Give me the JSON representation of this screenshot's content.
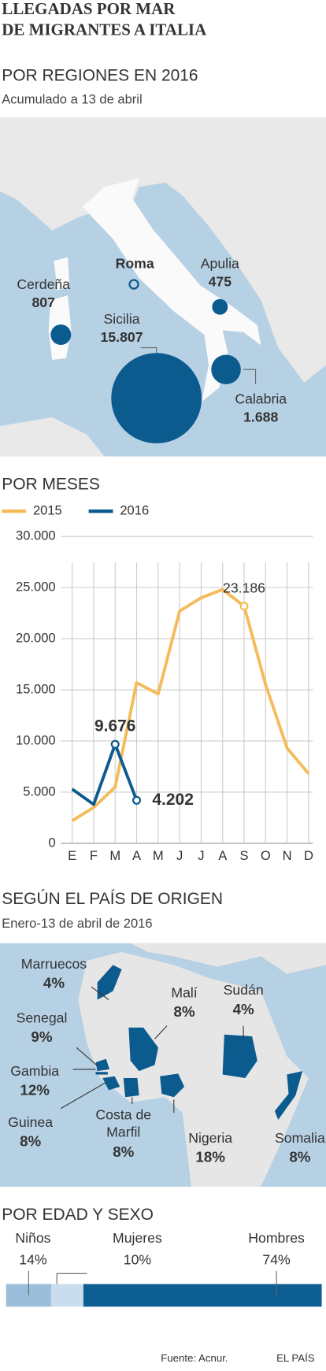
{
  "title": [
    "LLEGADAS POR MAR",
    "DE MIGRANTES A ITALIA"
  ],
  "regions": {
    "title": "POR REGIONES EN 2016",
    "subtitle": "Acumulado a 13 de abril",
    "capital": "Roma",
    "items": [
      {
        "name": "Cerdeña",
        "value": 807,
        "value_label": "807"
      },
      {
        "name": "Sicilia",
        "value": 15807,
        "value_label": "15.807"
      },
      {
        "name": "Apulia",
        "value": 475,
        "value_label": "475"
      },
      {
        "name": "Calabria",
        "value": 1688,
        "value_label": "1.688"
      }
    ]
  },
  "chart_data": {
    "type": "line",
    "title": "POR MESES",
    "categories": [
      "E",
      "F",
      "M",
      "A",
      "M",
      "J",
      "J",
      "A",
      "S",
      "O",
      "N",
      "D"
    ],
    "series": [
      {
        "name": "2015",
        "color": "#f4bb5a",
        "values": [
          2200,
          3500,
          5500,
          15700,
          14600,
          22700,
          24000,
          24800,
          23186,
          15500,
          9300,
          6800
        ],
        "value_labels": [
          null,
          null,
          null,
          null,
          null,
          null,
          null,
          null,
          "23.186",
          null,
          null,
          null
        ]
      },
      {
        "name": "2016",
        "color": "#0c5b8f",
        "values": [
          5300,
          3800,
          9676,
          4202,
          null,
          null,
          null,
          null,
          null,
          null,
          null,
          null
        ],
        "value_labels": [
          null,
          null,
          "9.676",
          "4.202",
          null,
          null,
          null,
          null,
          null,
          null,
          null,
          null
        ]
      }
    ],
    "ylim": [
      0,
      30000
    ],
    "yticks": [
      0,
      {
        "value": 5000,
        "label": "5.000"
      },
      {
        "value": 10000,
        "label": "10.000"
      },
      {
        "value": 15000,
        "label": "15.000"
      },
      {
        "value": 20000,
        "label": "20.000"
      },
      {
        "value": 25000,
        "label": "25.000"
      },
      {
        "value": 30000,
        "label": "30.000"
      }
    ],
    "grid": true
  },
  "origin": {
    "title": "SEGÚN EL PAÍS DE ORIGEN",
    "subtitle": "Enero-13 de abril de 2016",
    "items": [
      {
        "name": "Marruecos",
        "value": 4,
        "value_label": "4%"
      },
      {
        "name": "Senegal",
        "value": 9,
        "value_label": "9%"
      },
      {
        "name": "Gambia",
        "value": 12,
        "value_label": "12%"
      },
      {
        "name": "Guinea",
        "value": 8,
        "value_label": "8%"
      },
      {
        "name": "Costa de Marfil",
        "value": 8,
        "value_label": "8%"
      },
      {
        "name": "Malí",
        "value": 8,
        "value_label": "8%"
      },
      {
        "name": "Sudán",
        "value": 4,
        "value_label": "4%"
      },
      {
        "name": "Nigeria",
        "value": 18,
        "value_label": "18%"
      },
      {
        "name": "Somalia",
        "value": 8,
        "value_label": "8%"
      }
    ]
  },
  "age_sex": {
    "title": "POR EDAD Y SEXO",
    "items": [
      {
        "name": "Niños",
        "value": 14,
        "value_label": "14%",
        "color": "#9bbfdb"
      },
      {
        "name": "Mujeres",
        "value": 10,
        "value_label": "10%",
        "color": "#c9ddee"
      },
      {
        "name": "Hombres",
        "value": 74,
        "value_label": "74%",
        "color": "#0d5e92"
      }
    ]
  },
  "source": "Fuente: Acnur.",
  "brand": "EL PAÍS"
}
